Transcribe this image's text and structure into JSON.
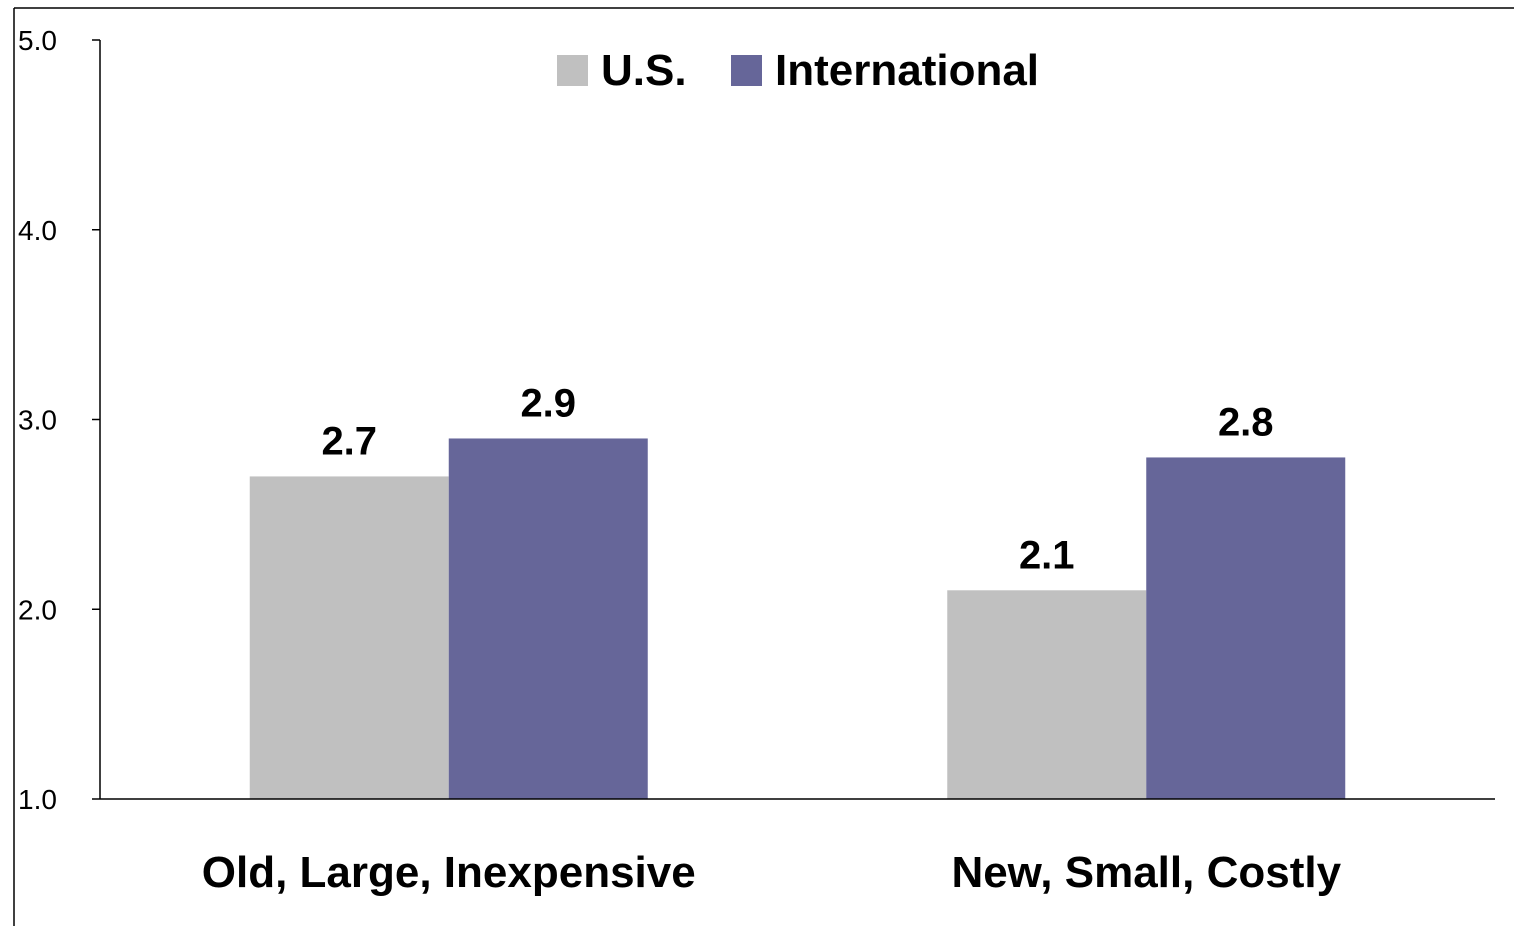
{
  "chart_data": {
    "type": "bar",
    "categories": [
      "Old, Large, Inexpensive",
      "New, Small, Costly"
    ],
    "series": [
      {
        "name": "U.S.",
        "values": [
          2.7,
          2.1
        ],
        "color": "#c0c0c0"
      },
      {
        "name": "International",
        "values": [
          2.9,
          2.8
        ],
        "color": "#666699"
      }
    ],
    "data_labels": [
      [
        "2.7",
        "2.1"
      ],
      [
        "2.9",
        "2.8"
      ]
    ],
    "ylim": [
      1.0,
      5.0
    ],
    "yticks": [
      1.0,
      2.0,
      3.0,
      4.0,
      5.0
    ],
    "ytick_labels": [
      "1.0",
      "2.0",
      "3.0",
      "4.0",
      "5.0"
    ],
    "title": "",
    "xlabel": "",
    "ylabel": "",
    "grid": false,
    "legend": "top-center"
  }
}
